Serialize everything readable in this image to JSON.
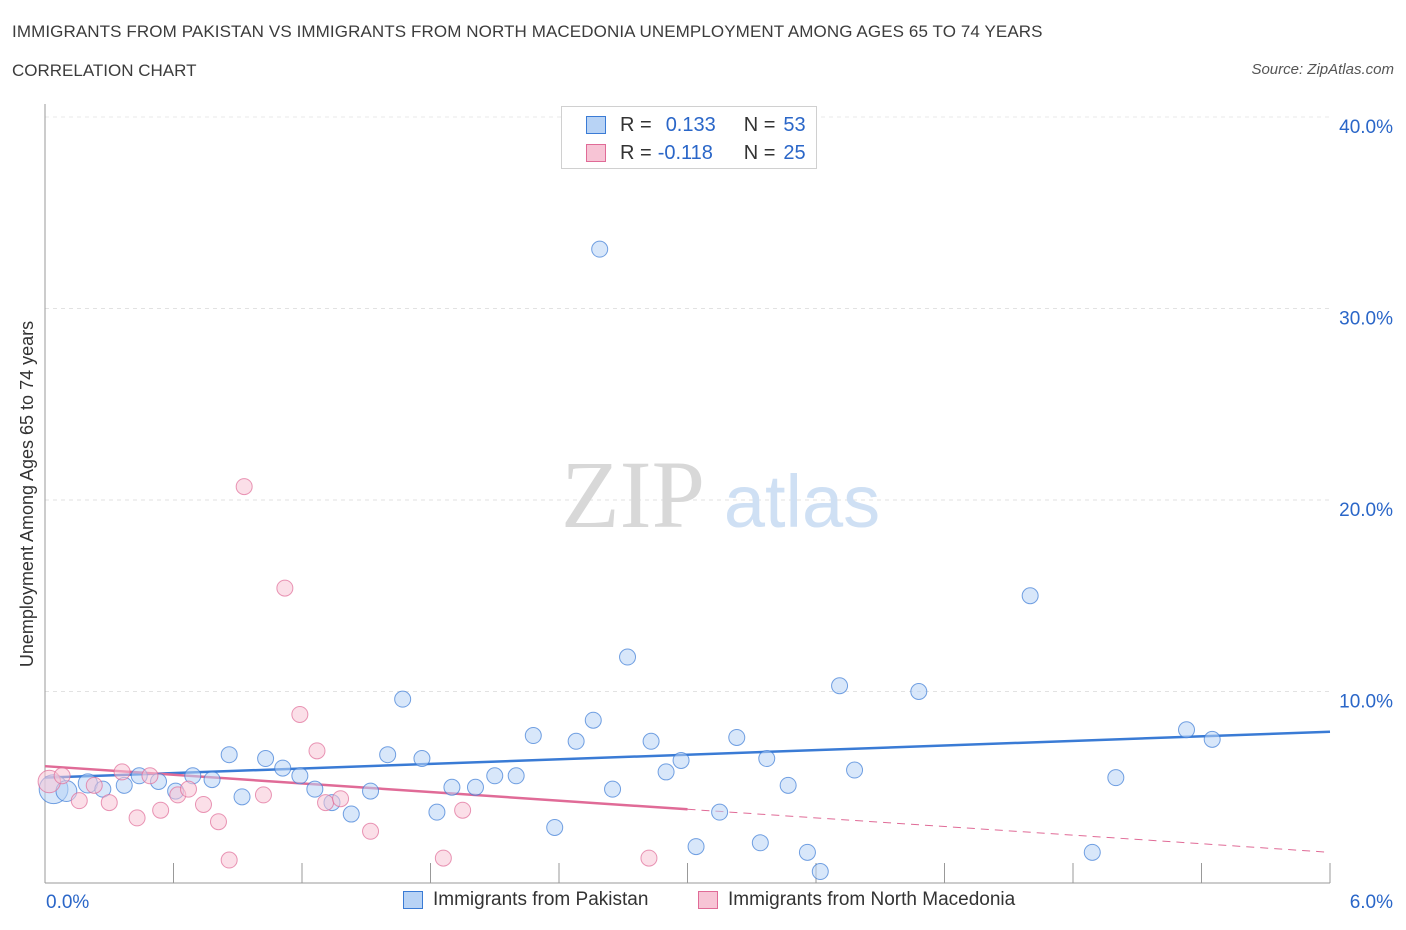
{
  "header": {
    "title": "IMMIGRANTS FROM PAKISTAN VS IMMIGRANTS FROM NORTH MACEDONIA UNEMPLOYMENT AMONG AGES 65 TO 74 YEARS",
    "subtitle": "CORRELATION CHART",
    "source": "Source: ZipAtlas.com"
  },
  "watermark": {
    "zip": "ZIP",
    "atlas": "atlas"
  },
  "colors": {
    "blue": "#3a7bd5",
    "blue_fill": "#b8d3f5",
    "pink": "#e06b97",
    "pink_fill": "#f7c4d5",
    "value_text": "#2a66c8"
  },
  "stats_legend": {
    "rows": [
      {
        "r_label": "R =",
        "r_value": "0.133",
        "n_label": "N =",
        "n_value": "53"
      },
      {
        "r_label": "R =",
        "r_value": "-0.118",
        "n_label": "N =",
        "n_value": "25"
      }
    ]
  },
  "chart_data": {
    "type": "scatter",
    "title": "IMMIGRANTS FROM PAKISTAN VS IMMIGRANTS FROM NORTH MACEDONIA UNEMPLOYMENT AMONG AGES 65 TO 74 YEARS",
    "xlabel": "",
    "ylabel": "Unemployment Among Ages 65 to 74 years",
    "xlim": [
      0,
      6
    ],
    "ylim": [
      0,
      40
    ],
    "x_tick_labels": [
      "0.0%",
      "6.0%"
    ],
    "y_tick_labels": [
      "10.0%",
      "20.0%",
      "30.0%",
      "40.0%"
    ],
    "y_ticks": [
      10,
      20,
      30,
      40
    ],
    "series": [
      {
        "name": "Immigrants from Pakistan",
        "color": "blue",
        "trend": {
          "x0": 0,
          "y0": 5.5,
          "x1": 6,
          "y1": 7.9,
          "dashed_from": null
        },
        "points": [
          [
            0.04,
            4.9,
            1.8
          ],
          [
            0.1,
            4.8,
            1.3
          ],
          [
            0.2,
            5.2,
            1.2
          ],
          [
            0.27,
            4.9,
            1.0
          ],
          [
            0.37,
            5.1,
            1.0
          ],
          [
            0.44,
            5.6,
            1.0
          ],
          [
            0.53,
            5.3,
            1.0
          ],
          [
            0.61,
            4.8,
            1.0
          ],
          [
            0.69,
            5.6,
            1.0
          ],
          [
            0.78,
            5.4,
            1.0
          ],
          [
            0.86,
            6.7,
            1.0
          ],
          [
            0.92,
            4.5,
            1.0
          ],
          [
            1.03,
            6.5,
            1.0
          ],
          [
            1.11,
            6.0,
            1.0
          ],
          [
            1.19,
            5.6,
            1.0
          ],
          [
            1.26,
            4.9,
            1.0
          ],
          [
            1.34,
            4.2,
            1.0
          ],
          [
            1.43,
            3.6,
            1.0
          ],
          [
            1.52,
            4.8,
            1.0
          ],
          [
            1.6,
            6.7,
            1.0
          ],
          [
            1.67,
            9.6,
            1.0
          ],
          [
            1.76,
            6.5,
            1.0
          ],
          [
            1.83,
            3.7,
            1.0
          ],
          [
            1.9,
            5.0,
            1.0
          ],
          [
            2.01,
            5.0,
            1.0
          ],
          [
            2.1,
            5.6,
            1.0
          ],
          [
            2.2,
            5.6,
            1.0
          ],
          [
            2.28,
            7.7,
            1.0
          ],
          [
            2.38,
            2.9,
            1.0
          ],
          [
            2.48,
            7.4,
            1.0
          ],
          [
            2.56,
            8.5,
            1.0
          ],
          [
            2.59,
            33.1,
            1.0
          ],
          [
            2.65,
            4.9,
            1.0
          ],
          [
            2.72,
            11.8,
            1.0
          ],
          [
            2.83,
            7.4,
            1.0
          ],
          [
            2.9,
            5.8,
            1.0
          ],
          [
            2.97,
            6.4,
            1.0
          ],
          [
            3.04,
            1.9,
            1.0
          ],
          [
            3.15,
            3.7,
            1.0
          ],
          [
            3.23,
            7.6,
            1.0
          ],
          [
            3.34,
            2.1,
            1.0
          ],
          [
            3.37,
            6.5,
            1.0
          ],
          [
            3.47,
            5.1,
            1.0
          ],
          [
            3.56,
            1.6,
            1.0
          ],
          [
            3.62,
            0.6,
            1.0
          ],
          [
            3.71,
            10.3,
            1.0
          ],
          [
            3.78,
            5.9,
            1.0
          ],
          [
            4.08,
            10.0,
            1.0
          ],
          [
            4.6,
            15.0,
            1.0
          ],
          [
            4.89,
            1.6,
            1.0
          ],
          [
            5.0,
            5.5,
            1.0
          ],
          [
            5.33,
            8.0,
            1.0
          ],
          [
            5.45,
            7.5,
            1.0
          ]
        ]
      },
      {
        "name": "Immigrants from North Macedonia",
        "color": "pink",
        "trend": {
          "x0": 0,
          "y0": 6.1,
          "x1": 6,
          "y1": 1.6,
          "dashed_from": 3.0
        },
        "points": [
          [
            0.02,
            5.3,
            1.4
          ],
          [
            0.08,
            5.6,
            1.0
          ],
          [
            0.16,
            4.3,
            1.0
          ],
          [
            0.23,
            5.1,
            1.0
          ],
          [
            0.3,
            4.2,
            1.0
          ],
          [
            0.36,
            5.8,
            1.0
          ],
          [
            0.43,
            3.4,
            1.0
          ],
          [
            0.49,
            5.6,
            1.0
          ],
          [
            0.54,
            3.8,
            1.0
          ],
          [
            0.62,
            4.6,
            1.0
          ],
          [
            0.67,
            4.9,
            1.0
          ],
          [
            0.74,
            4.1,
            1.0
          ],
          [
            0.81,
            3.2,
            1.0
          ],
          [
            0.86,
            1.2,
            1.0
          ],
          [
            0.93,
            20.7,
            1.0
          ],
          [
            1.02,
            4.6,
            1.0
          ],
          [
            1.12,
            15.4,
            1.0
          ],
          [
            1.19,
            8.8,
            1.0
          ],
          [
            1.27,
            6.9,
            1.0
          ],
          [
            1.31,
            4.2,
            1.0
          ],
          [
            1.38,
            4.4,
            1.0
          ],
          [
            1.52,
            2.7,
            1.0
          ],
          [
            1.86,
            1.3,
            1.0
          ],
          [
            1.95,
            3.8,
            1.0
          ],
          [
            2.82,
            1.3,
            1.0
          ]
        ]
      }
    ]
  }
}
